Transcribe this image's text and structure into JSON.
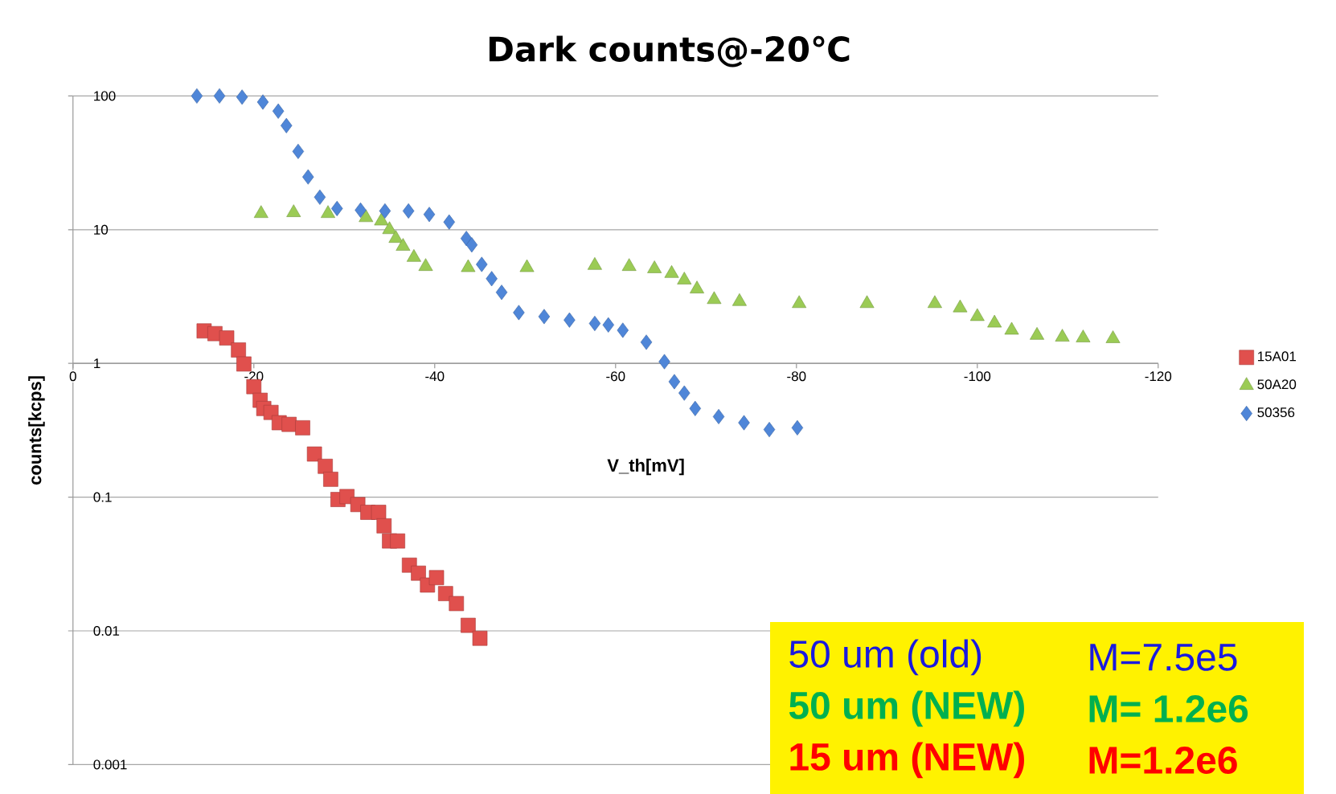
{
  "chart_data": {
    "type": "scatter",
    "title": "Dark counts@-20℃",
    "xlabel": "V_th[mV]",
    "ylabel": "counts[kcps]",
    "xlim": [
      0,
      -120
    ],
    "xticks": [
      0,
      -20,
      -40,
      -60,
      -80,
      -100,
      -120
    ],
    "ylim": [
      0.001,
      100
    ],
    "yticks": [
      0.001,
      0.01,
      0.1,
      1,
      10,
      100
    ],
    "log": "y",
    "grid": "y",
    "legend": "right",
    "series": [
      {
        "name": "15A01",
        "color": "#e0504d",
        "marker": "square",
        "x": [
          -14.5,
          -15.7,
          -17.0,
          -18.3,
          -18.9,
          -20.0,
          -20.7,
          -21.1,
          -21.9,
          -22.8,
          -23.9,
          -25.4,
          -26.7,
          -27.9,
          -28.5,
          -29.3,
          -30.3,
          -31.5,
          -32.6,
          -33.8,
          -34.4,
          -35.0,
          -35.9,
          -37.2,
          -38.2,
          -39.2,
          -40.2,
          -41.2,
          -42.4,
          -43.7,
          -45.0
        ],
        "values": [
          1.75,
          1.67,
          1.55,
          1.26,
          0.99,
          0.67,
          0.53,
          0.46,
          0.43,
          0.36,
          0.35,
          0.33,
          0.21,
          0.17,
          0.136,
          0.096,
          0.101,
          0.088,
          0.077,
          0.077,
          0.061,
          0.047,
          0.047,
          0.031,
          0.027,
          0.022,
          0.025,
          0.019,
          0.016,
          0.011,
          0.0088
        ]
      },
      {
        "name": "50A20",
        "color": "#9bcb55",
        "marker": "triangle",
        "x": [
          -20.8,
          -24.4,
          -28.2,
          -32.4,
          -34.1,
          -35.0,
          -35.7,
          -36.5,
          -37.7,
          -39.0,
          -43.7,
          -50.2,
          -57.7,
          -61.5,
          -64.3,
          -66.2,
          -67.6,
          -69.0,
          -70.9,
          -73.7,
          -80.3,
          -87.8,
          -95.3,
          -98.1,
          -100.0,
          -101.9,
          -103.8,
          -106.6,
          -109.4,
          -111.7,
          -115.0
        ],
        "values": [
          13.2,
          13.4,
          13.2,
          12.3,
          11.6,
          10.0,
          8.6,
          7.5,
          6.2,
          5.3,
          5.2,
          5.2,
          5.4,
          5.3,
          5.1,
          4.7,
          4.2,
          3.6,
          3.0,
          2.9,
          2.8,
          2.8,
          2.8,
          2.6,
          2.24,
          2.0,
          1.77,
          1.62,
          1.57,
          1.55,
          1.53
        ]
      },
      {
        "name": "50356",
        "color": "#4f86d8",
        "marker": "diamond",
        "x": [
          -13.7,
          -16.2,
          -18.7,
          -21.0,
          -22.7,
          -23.6,
          -24.9,
          -26.0,
          -27.3,
          -29.2,
          -31.8,
          -34.5,
          -37.1,
          -39.4,
          -41.6,
          -43.5,
          -44.1,
          -45.2,
          -46.3,
          -47.4,
          -49.3,
          -52.1,
          -54.9,
          -57.7,
          -59.2,
          -60.8,
          -63.4,
          -65.4,
          -66.5,
          -67.6,
          -68.8,
          -71.4,
          -74.2,
          -77.0,
          -80.1
        ],
        "values": [
          100,
          100,
          98,
          90,
          77,
          60,
          38.5,
          24.8,
          17.5,
          14.4,
          14.0,
          13.8,
          13.8,
          13.0,
          11.4,
          8.6,
          7.7,
          5.5,
          4.3,
          3.4,
          2.4,
          2.24,
          2.11,
          1.99,
          1.94,
          1.77,
          1.44,
          1.03,
          0.73,
          0.6,
          0.46,
          0.4,
          0.36,
          0.32,
          0.33
        ]
      }
    ],
    "annotations": [
      "50 um (old)",
      "M=7.5e5",
      "50 um (NEW)",
      "M= 1.2e6",
      "15 um (NEW)",
      "M=1.2e6"
    ]
  }
}
